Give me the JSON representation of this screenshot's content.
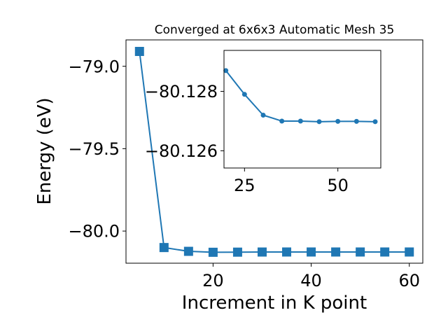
{
  "chart_data": [
    {
      "type": "line",
      "title": "Converged at 6x6x3 Automatic Mesh 35",
      "xlabel": "Increment in K point",
      "ylabel": "Energy (eV)",
      "xlim": [
        2.25,
        62.75
      ],
      "ylim": [
        -80.195,
        -78.84
      ],
      "xticks": [
        20,
        40,
        60
      ],
      "yticks": [
        -79.0,
        -79.5,
        -80.0
      ],
      "xtick_labels": [
        "20",
        "40",
        "60"
      ],
      "ytick_labels": [
        "−79.0",
        "−79.5",
        "−80.0"
      ],
      "marker": "square",
      "color": "#1f77b4",
      "grid": false,
      "x": [
        5,
        10,
        15,
        20,
        25,
        30,
        35,
        40,
        45,
        50,
        55,
        60
      ],
      "y": [
        -78.91,
        -80.1,
        -80.123,
        -80.1287,
        -80.1279,
        -80.1272,
        -80.127,
        -80.127,
        -80.127,
        -80.127,
        -80.127,
        -80.127
      ]
    },
    {
      "type": "line",
      "title": "",
      "xlabel": "",
      "ylabel": "",
      "xlim": [
        19.5,
        61.5
      ],
      "ylim": [
        -80.12542,
        -80.12938
      ],
      "xticks": [
        25,
        50
      ],
      "yticks": [
        -80.128,
        -80.126
      ],
      "xtick_labels": [
        "25",
        "50"
      ],
      "ytick_labels": [
        "−80.128",
        "−80.126"
      ],
      "marker": "circle",
      "color": "#1f77b4",
      "grid": false,
      "x": [
        20,
        25,
        30,
        35,
        40,
        45,
        50,
        55,
        60
      ],
      "y": [
        -80.1287,
        -80.1279,
        -80.1272,
        -80.127,
        -80.127,
        -80.12698,
        -80.12699,
        -80.12699,
        -80.12698
      ]
    }
  ]
}
